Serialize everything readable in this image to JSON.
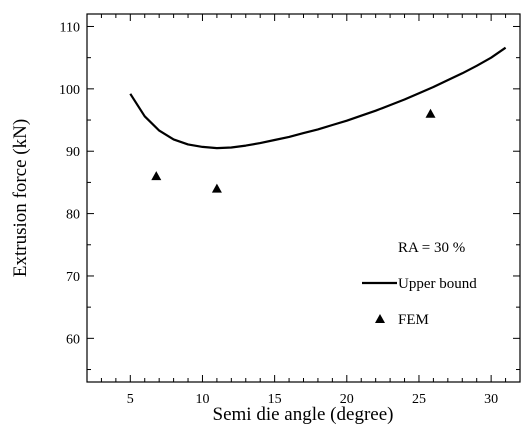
{
  "chart_data": {
    "type": "line",
    "title": "",
    "xlabel": "Semi die angle (degree)",
    "ylabel": "Extrusion force (kN)",
    "xlim": [
      2,
      32
    ],
    "ylim": [
      53,
      112
    ],
    "x_ticks": [
      5,
      10,
      15,
      20,
      25,
      30
    ],
    "y_ticks": [
      60,
      70,
      80,
      90,
      100,
      110
    ],
    "annotation": "RA = 30 %",
    "legend_position": "bottom-right",
    "series": [
      {
        "name": "Upper bound",
        "style": "line",
        "color": "#000000",
        "x": [
          5,
          6,
          7,
          8,
          9,
          10,
          11,
          12,
          13,
          14,
          15,
          16,
          17,
          18,
          19,
          20,
          21,
          22,
          23,
          24,
          25,
          26,
          27,
          28,
          29,
          30,
          31
        ],
        "y": [
          99.2,
          95.6,
          93.3,
          91.9,
          91.1,
          90.7,
          90.5,
          90.6,
          90.9,
          91.3,
          91.8,
          92.3,
          92.9,
          93.5,
          94.2,
          94.9,
          95.7,
          96.5,
          97.4,
          98.3,
          99.3,
          100.3,
          101.4,
          102.5,
          103.7,
          105.0,
          106.6
        ]
      },
      {
        "name": "FEM",
        "style": "marker-triangle",
        "color": "#000000",
        "x": [
          6.8,
          11.0,
          25.8
        ],
        "y": [
          86.0,
          84.0,
          96.0
        ]
      }
    ]
  }
}
